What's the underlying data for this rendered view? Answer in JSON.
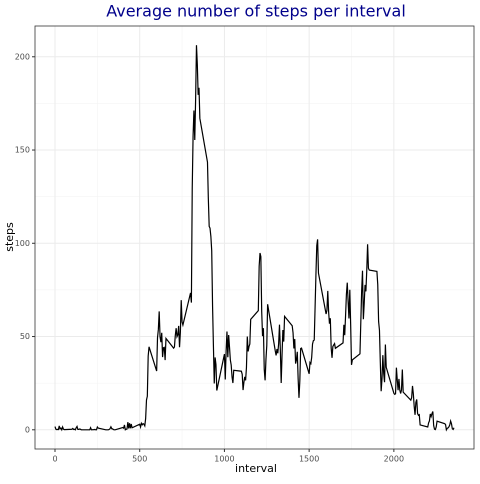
{
  "chart_data": {
    "type": "line",
    "title": "Average number of steps per interval",
    "x_label": "interval",
    "y_label": "steps",
    "x": [
      0,
      5,
      10,
      15,
      20,
      25,
      30,
      35,
      40,
      45,
      50,
      55,
      100,
      105,
      110,
      115,
      120,
      125,
      130,
      135,
      140,
      145,
      150,
      155,
      200,
      205,
      210,
      215,
      220,
      225,
      230,
      235,
      240,
      245,
      250,
      255,
      300,
      305,
      310,
      315,
      320,
      325,
      330,
      335,
      340,
      345,
      350,
      355,
      400,
      405,
      410,
      415,
      420,
      425,
      430,
      435,
      440,
      445,
      450,
      455,
      500,
      505,
      510,
      515,
      520,
      525,
      530,
      535,
      540,
      545,
      550,
      555,
      600,
      605,
      610,
      615,
      620,
      625,
      630,
      635,
      640,
      645,
      650,
      655,
      700,
      705,
      710,
      715,
      720,
      725,
      730,
      735,
      740,
      745,
      750,
      755,
      800,
      805,
      810,
      815,
      820,
      825,
      830,
      835,
      840,
      845,
      850,
      855,
      900,
      905,
      910,
      915,
      920,
      925,
      930,
      935,
      940,
      945,
      950,
      955,
      1000,
      1005,
      1010,
      1015,
      1020,
      1025,
      1030,
      1035,
      1040,
      1045,
      1050,
      1055,
      1100,
      1105,
      1110,
      1115,
      1120,
      1125,
      1130,
      1135,
      1140,
      1145,
      1150,
      1155,
      1200,
      1205,
      1210,
      1215,
      1220,
      1225,
      1230,
      1235,
      1240,
      1245,
      1250,
      1255,
      1300,
      1305,
      1310,
      1315,
      1320,
      1325,
      1330,
      1335,
      1340,
      1345,
      1350,
      1355,
      1400,
      1405,
      1410,
      1415,
      1420,
      1425,
      1430,
      1435,
      1440,
      1445,
      1450,
      1455,
      1500,
      1505,
      1510,
      1515,
      1520,
      1525,
      1530,
      1535,
      1540,
      1545,
      1550,
      1555,
      1600,
      1605,
      1610,
      1615,
      1620,
      1625,
      1630,
      1635,
      1640,
      1645,
      1650,
      1655,
      1700,
      1705,
      1710,
      1715,
      1720,
      1725,
      1730,
      1735,
      1740,
      1745,
      1750,
      1755,
      1800,
      1805,
      1810,
      1815,
      1820,
      1825,
      1830,
      1835,
      1840,
      1845,
      1850,
      1855,
      1900,
      1905,
      1910,
      1915,
      1920,
      1925,
      1930,
      1935,
      1940,
      1945,
      1950,
      1955,
      2000,
      2005,
      2010,
      2015,
      2020,
      2025,
      2030,
      2035,
      2040,
      2045,
      2050,
      2055,
      2100,
      2105,
      2110,
      2115,
      2120,
      2125,
      2130,
      2135,
      2140,
      2145,
      2150,
      2155,
      2200,
      2205,
      2210,
      2215,
      2220,
      2225,
      2230,
      2235,
      2240,
      2245,
      2250,
      2255,
      2300,
      2305,
      2310,
      2315,
      2320,
      2325,
      2330,
      2335,
      2340,
      2345,
      2350,
      2355
    ],
    "values": [
      1.7,
      0.3,
      0.1,
      0.2,
      0.1,
      2.1,
      0.5,
      0.9,
      0,
      1.5,
      0.3,
      0.1,
      0.3,
      0.7,
      0.2,
      0.3,
      0,
      1.1,
      1.8,
      0.2,
      0.2,
      0.4,
      0.3,
      0,
      0,
      0,
      1.1,
      0,
      0,
      0.1,
      0,
      0.2,
      0,
      0,
      1.5,
      0.9,
      0,
      0,
      0,
      0,
      0.2,
      0.6,
      1.6,
      0.6,
      0.5,
      0.1,
      0,
      0,
      1.2,
      0.9,
      2.6,
      0,
      0.3,
      0.4,
      4.1,
      0.7,
      3.5,
      0.8,
      3.1,
      1.1,
      3,
      1.5,
      3.5,
      2.7,
      3.3,
      3,
      2.1,
      6,
      16,
      18,
      39.5,
      44.5,
      31.5,
      49.3,
      53.8,
      63.5,
      50,
      47,
      52,
      39,
      44,
      44.2,
      37.4,
      49,
      43.8,
      44.4,
      50.5,
      54.5,
      49.9,
      50.9,
      55.7,
      44.3,
      52.3,
      69.5,
      57.8,
      56.2,
      73.4,
      68.2,
      129.4,
      157.5,
      171.2,
      155.4,
      177.3,
      206.2,
      195.9,
      179.6,
      183.4,
      167,
      143.5,
      124,
      109.1,
      108.1,
      103.7,
      96,
      66.2,
      45.2,
      24.8,
      38.8,
      35,
      21.1,
      40.6,
      27,
      42.4,
      52.7,
      38.9,
      50.8,
      44.3,
      37.4,
      34.7,
      28.3,
      25.1,
      31.9,
      31.4,
      29.7,
      21.3,
      25.5,
      28.4,
      26.5,
      33.4,
      50,
      42,
      44.6,
      46,
      59.2,
      63.9,
      87.7,
      94.8,
      92.8,
      63.4,
      50.2,
      54.5,
      32.4,
      26.5,
      37.7,
      45.1,
      67.3,
      42.3,
      39.9,
      43.3,
      41,
      46.2,
      56.4,
      42.8,
      25.1,
      40,
      53.5,
      47.3,
      60.8,
      55.8,
      52,
      43.6,
      48.7,
      35.5,
      37.5,
      41.8,
      27.5,
      17.1,
      26.1,
      43.6,
      43.8,
      30,
      36.1,
      35.5,
      38.8,
      46,
      47.8,
      48.1,
      65.3,
      82.9,
      98.7,
      102.1,
      84,
      62.1,
      64.1,
      74.5,
      63.2,
      56.9,
      59.8,
      43.9,
      38.6,
      44.7,
      45.5,
      46.2,
      43.7,
      46.6,
      56.3,
      50.7,
      61.2,
      72.7,
      78.9,
      68.9,
      59.7,
      75.1,
      56.5,
      34.8,
      37.5,
      40.7,
      58,
      74.7,
      85.3,
      59.3,
      67.8,
      77.7,
      74.2,
      85.3,
      99.5,
      86.6,
      85.6,
      84.9,
      77.8,
      58,
      53.4,
      36.3,
      20.7,
      27.4,
      40,
      30.2,
      25.5,
      45.7,
      33.5,
      19.6,
      19,
      19.3,
      33.3,
      26.8,
      21.2,
      27.3,
      21.3,
      19.5,
      21.3,
      32.3,
      20.2,
      15.9,
      17.2,
      23.5,
      19.2,
      12.5,
      8,
      14.7,
      16.3,
      8.7,
      7.8,
      8.1,
      2.6,
      1.5,
      3.7,
      4.8,
      8.5,
      7.1,
      8.7,
      9.8,
      2.2,
      0.3,
      0.1,
      1.6,
      4.6,
      3.3,
      2.8,
      0,
      0.8,
      1,
      1.6,
      2.6,
      4.7,
      3.3,
      0.6,
      0.2,
      1.1
    ],
    "color": "#000000",
    "title_color": "#00008b",
    "xlim": [
      -118,
      2473
    ],
    "xticks": [
      0,
      500,
      1000,
      1500,
      2000
    ],
    "ylim": [
      -10.3,
      216.5
    ],
    "yticks": [
      0,
      50,
      100,
      150,
      200
    ],
    "grid": true
  }
}
